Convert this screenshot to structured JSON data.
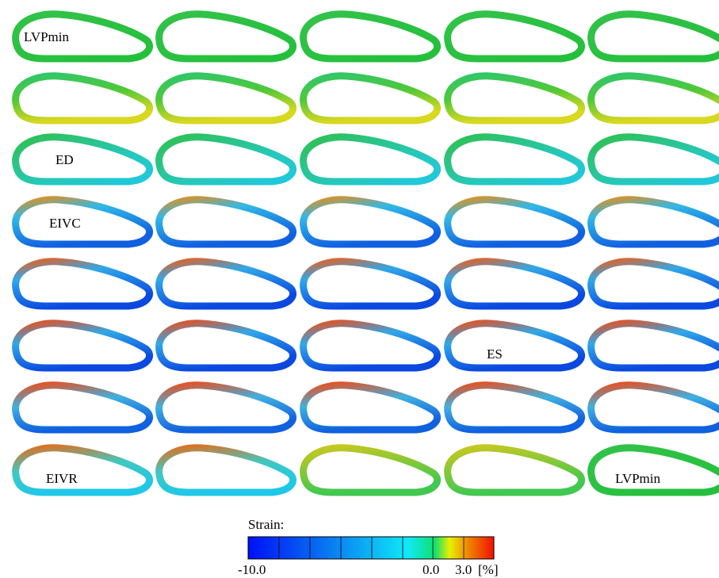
{
  "labels": [
    "LVPmin",
    "ED",
    "EIVC",
    "ES",
    "EIVR",
    "LVPmin"
  ],
  "colorbar": {
    "title": "Strain:",
    "ticks": [
      "-10.0",
      "0.0",
      "3.0"
    ],
    "unit": "[%]"
  }
}
